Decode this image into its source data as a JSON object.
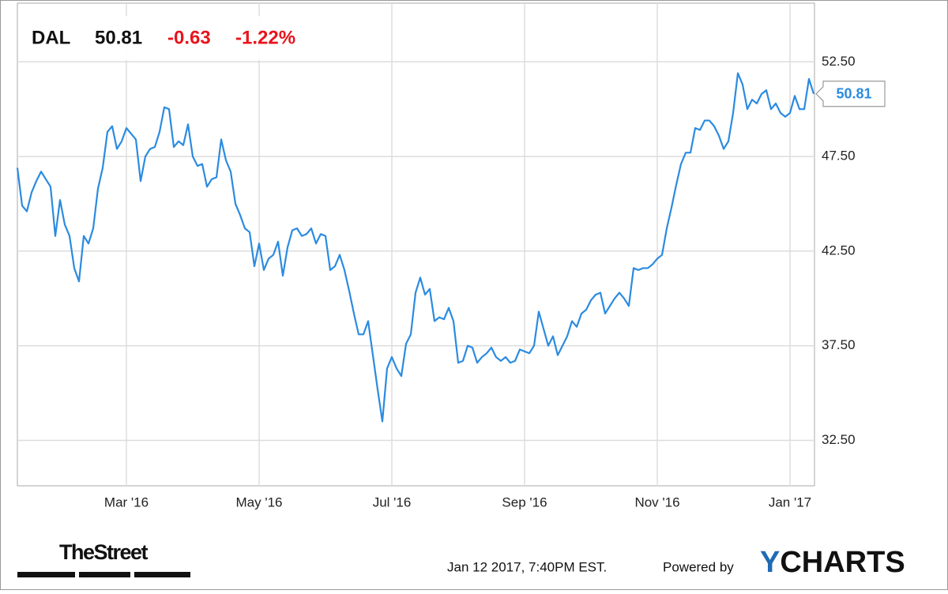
{
  "chart_data": {
    "type": "line",
    "symbol": "DAL",
    "change": -0.63,
    "change_percent": "-1.22%",
    "color": "#2b8be0",
    "grid": true,
    "ylim": [
      30.1,
      55.6
    ],
    "yticks": [
      {
        "value": 32.5,
        "label": "32.50"
      },
      {
        "value": 37.5,
        "label": "37.50"
      },
      {
        "value": 42.5,
        "label": "42.50"
      },
      {
        "value": 47.5,
        "label": "47.50"
      },
      {
        "value": 52.5,
        "label": "52.50"
      }
    ],
    "categories": [
      null,
      null,
      null,
      null,
      null,
      null,
      null,
      null,
      null,
      null,
      null,
      null,
      null,
      null,
      null,
      null,
      null,
      null,
      null,
      null,
      null,
      null,
      null,
      "Mar '16",
      null,
      null,
      null,
      null,
      null,
      null,
      null,
      null,
      null,
      null,
      null,
      null,
      null,
      null,
      null,
      null,
      null,
      null,
      null,
      null,
      null,
      null,
      null,
      null,
      null,
      null,
      null,
      "May '16",
      null,
      null,
      null,
      null,
      null,
      null,
      null,
      null,
      null,
      null,
      null,
      null,
      null,
      null,
      null,
      null,
      null,
      null,
      null,
      null,
      null,
      null,
      null,
      null,
      null,
      null,
      null,
      "Jul '16",
      null,
      null,
      null,
      null,
      null,
      null,
      null,
      null,
      null,
      null,
      null,
      null,
      null,
      null,
      null,
      null,
      null,
      null,
      null,
      null,
      null,
      null,
      null,
      null,
      null,
      null,
      null,
      "Sep '16",
      null,
      null,
      null,
      null,
      null,
      null,
      null,
      null,
      null,
      null,
      null,
      null,
      null,
      null,
      null,
      null,
      null,
      null,
      null,
      null,
      null,
      null,
      null,
      null,
      null,
      null,
      null,
      "Nov '16",
      null,
      null,
      null,
      null,
      null,
      null,
      null,
      null,
      null,
      null,
      null,
      null,
      null,
      null,
      null,
      null,
      null,
      null,
      null,
      null,
      null,
      null,
      null,
      null,
      null,
      null,
      null,
      "Jan '17",
      null,
      null,
      null,
      null,
      null
    ],
    "values": [
      46.9,
      44.9,
      44.6,
      45.6,
      46.2,
      46.7,
      46.3,
      45.9,
      43.3,
      45.2,
      43.9,
      43.3,
      41.6,
      40.9,
      43.3,
      42.9,
      43.7,
      45.8,
      46.9,
      48.8,
      49.1,
      47.9,
      48.3,
      49.0,
      48.7,
      48.4,
      46.2,
      47.5,
      47.9,
      48.0,
      48.8,
      50.1,
      50.0,
      48.0,
      48.3,
      48.1,
      49.2,
      47.5,
      47.0,
      47.1,
      45.9,
      46.3,
      46.4,
      48.4,
      47.3,
      46.7,
      45.0,
      44.4,
      43.7,
      43.5,
      41.7,
      42.9,
      41.5,
      42.1,
      42.3,
      43.0,
      41.2,
      42.7,
      43.6,
      43.7,
      43.3,
      43.4,
      43.7,
      42.9,
      43.4,
      43.3,
      41.5,
      41.7,
      42.3,
      41.5,
      40.4,
      39.2,
      38.1,
      38.1,
      38.8,
      37.0,
      35.2,
      33.5,
      36.3,
      36.9,
      36.3,
      35.9,
      37.6,
      38.1,
      40.3,
      41.1,
      40.2,
      40.5,
      38.8,
      39.0,
      38.9,
      39.5,
      38.8,
      36.6,
      36.7,
      37.5,
      37.4,
      36.6,
      36.9,
      37.1,
      37.4,
      36.9,
      36.7,
      36.9,
      36.6,
      36.7,
      37.3,
      37.2,
      37.1,
      37.5,
      39.3,
      38.4,
      37.5,
      38.0,
      37.0,
      37.5,
      38.0,
      38.8,
      38.5,
      39.2,
      39.4,
      39.9,
      40.2,
      40.3,
      39.2,
      39.6,
      40.0,
      40.3,
      40.0,
      39.6,
      41.6,
      41.5,
      41.6,
      41.6,
      41.8,
      42.1,
      42.3,
      43.7,
      44.8,
      46.0,
      47.1,
      47.7,
      47.7,
      49.0,
      48.9,
      49.4,
      49.4,
      49.1,
      48.6,
      47.9,
      48.3,
      49.8,
      51.9,
      51.3,
      50.0,
      50.5,
      50.3,
      50.8,
      51.0,
      50.0,
      50.3,
      49.8,
      49.6,
      49.8,
      50.7,
      50.0,
      50.0,
      51.6,
      50.81
    ]
  },
  "footer": {
    "source": "TheStreet",
    "timestamp": "Jan 12 2017, 7:40PM EST.",
    "powered_by": "Powered by",
    "brand_y": "Y",
    "brand_rest": "CHARTS"
  }
}
